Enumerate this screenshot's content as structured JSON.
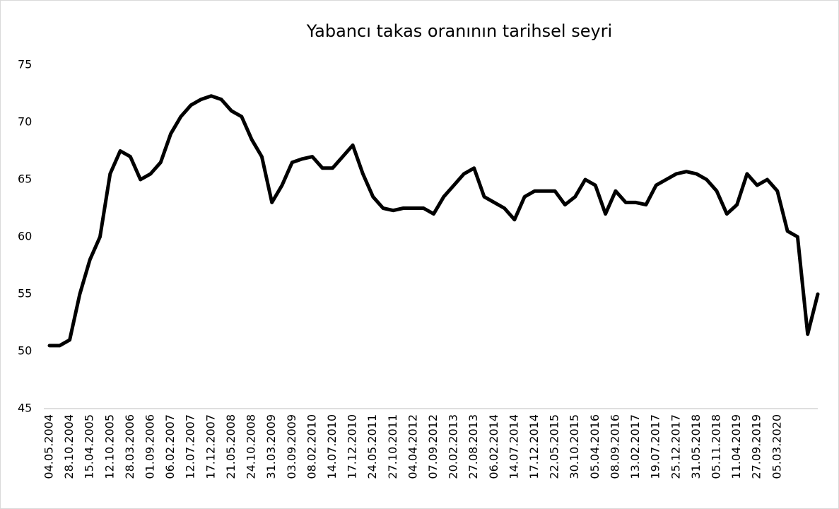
{
  "chart_data": {
    "type": "line",
    "title": "Yabancı takas oranının tarihsel seyri",
    "categories": [
      "04.05.2004",
      null,
      "28.10.2004",
      null,
      "15.04.2005",
      null,
      "12.10.2005",
      null,
      "28.03.2006",
      null,
      "01.09.2006",
      null,
      "06.02.2007",
      null,
      "12.07.2007",
      null,
      "17.12.2007",
      null,
      "21.05.2008",
      null,
      "24.10.2008",
      null,
      "31.03.2009",
      null,
      "03.09.2009",
      null,
      "08.02.2010",
      null,
      "14.07.2010",
      null,
      "17.12.2010",
      null,
      "24.05.2011",
      null,
      "27.10.2011",
      null,
      "04.04.2012",
      null,
      "07.09.2012",
      null,
      "20.02.2013",
      null,
      "27.08.2013",
      null,
      "06.02.2014",
      null,
      "14.07.2014",
      null,
      "17.12.2014",
      null,
      "22.05.2015",
      null,
      "30.10.2015",
      null,
      "05.04.2016",
      null,
      "08.09.2016",
      null,
      "13.02.2017",
      null,
      "19.07.2017",
      null,
      "25.12.2017",
      null,
      "31.05.2018",
      null,
      "05.11.2018",
      null,
      "11.04.2019",
      null,
      "27.09.2019",
      null,
      "05.03.2020",
      null,
      null,
      null,
      null
    ],
    "values": [
      50.5,
      50.5,
      51,
      55,
      58,
      60,
      65.5,
      67.5,
      67,
      65,
      65.5,
      66.5,
      69,
      70.5,
      71.5,
      72,
      72.3,
      72,
      71,
      70.5,
      68.5,
      67,
      63,
      64.5,
      66.5,
      66.8,
      67,
      66,
      66,
      67,
      68,
      65.5,
      63.5,
      62.5,
      62.3,
      62.5,
      62.5,
      62.5,
      62,
      63.5,
      64.5,
      65.5,
      66,
      63.5,
      63,
      62.5,
      61.5,
      63.5,
      64,
      64,
      64,
      62.8,
      63.5,
      65,
      64.5,
      62,
      64,
      63,
      63,
      62.8,
      64.5,
      65,
      65.5,
      65.7,
      65.5,
      65,
      64,
      62,
      62.8,
      65.5,
      64.5,
      65,
      64,
      60.5,
      60,
      51.5,
      55
    ],
    "color": "#000000",
    "ylim": [
      45,
      75
    ],
    "yticks": [
      45,
      50,
      55,
      60,
      65,
      70,
      75
    ]
  }
}
